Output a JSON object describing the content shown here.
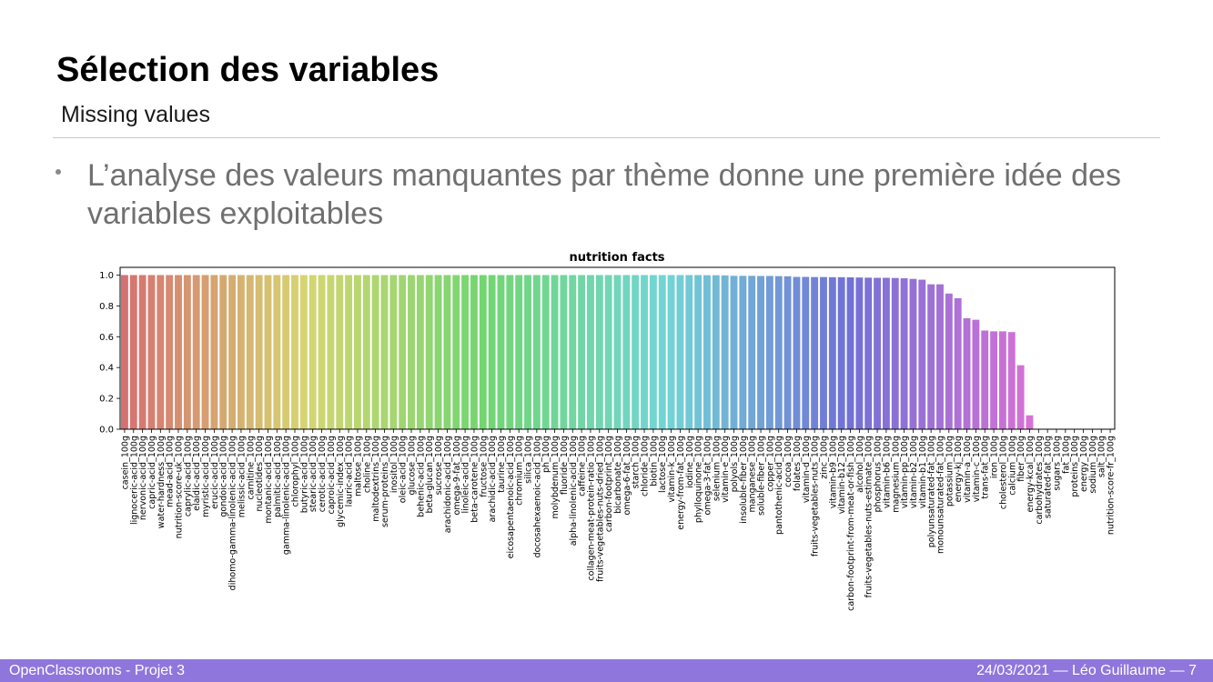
{
  "slide": {
    "title": "Sélection des variables",
    "subtitle": "Missing values",
    "bullet": "L’analyse des valeurs manquantes par thème donne une première idée des variables exploitables"
  },
  "footer": {
    "left": "OpenClassrooms - Projet 3",
    "right": "24/03/2021  — Léo Guillaume —    7"
  },
  "colors": {
    "footer_bg": "#8f76dc",
    "axis": "#000000"
  },
  "chart_data": {
    "type": "bar",
    "title": "nutrition facts",
    "xlabel": "",
    "ylabel": "",
    "ylim": [
      0,
      1.05
    ],
    "yticks": [
      "0.0",
      "0.2",
      "0.4",
      "0.6",
      "0.8",
      "1.0"
    ],
    "grid": false,
    "categories": [
      "casein_100g",
      "lignoceric-acid_100g",
      "nervonic-acid_100g",
      "capric-acid_100g",
      "water-hardness_100g",
      "mead-acid_100g",
      "nutrition-score-uk_100g",
      "caprylic-acid_100g",
      "elaidic-acid_100g",
      "myristic-acid_100g",
      "erucic-acid_100g",
      "gondoic-acid_100g",
      "dihomo-gamma-linolenic-acid_100g",
      "melissic-acid_100g",
      "carnitine_100g",
      "nucleotides_100g",
      "montanic-acid_100g",
      "palmitic-acid_100g",
      "gamma-linolenic-acid_100g",
      "chlorophyl_100g",
      "butyric-acid_100g",
      "stearic-acid_100g",
      "cerotic-acid_100g",
      "caproic-acid_100g",
      "glycemic-index_100g",
      "lauric-acid_100g",
      "maltose_100g",
      "choline_100g",
      "maltodextrins_100g",
      "serum-proteins_100g",
      "inositol_100g",
      "oleic-acid_100g",
      "glucose_100g",
      "behenic-acid_100g",
      "beta-glucan_100g",
      "sucrose_100g",
      "arachidonic-acid_100g",
      "omega-9-fat_100g",
      "linoleic-acid_100g",
      "beta-carotene_100g",
      "fructose_100g",
      "arachidic-acid_100g",
      "taurine_100g",
      "eicosapentaenoic-acid_100g",
      "chromium_100g",
      "silica_100g",
      "docosahexaenoic-acid_100g",
      "ph_100g",
      "molybdenum_100g",
      "fluoride_100g",
      "alpha-linolenic-acid_100g",
      "caffeine_100g",
      "collagen-meat-protein-ratio_100g",
      "fruits-vegetables-nuts-dried_100g",
      "carbon-footprint_100g",
      "bicarbonate_100g",
      "omega-6-fat_100g",
      "starch_100g",
      "chloride_100g",
      "biotin_100g",
      "lactose_100g",
      "vitamin-k_100g",
      "energy-from-fat_100g",
      "iodine_100g",
      "phylloquinone_100g",
      "omega-3-fat_100g",
      "selenium_100g",
      "vitamin-e_100g",
      "polyols_100g",
      "insoluble-fiber_100g",
      "manganese_100g",
      "soluble-fiber_100g",
      "copper_100g",
      "pantothenic-acid_100g",
      "cocoa_100g",
      "folates_100g",
      "vitamin-d_100g",
      "fruits-vegetables-nuts_100g",
      "zinc_100g",
      "vitamin-b9_100g",
      "vitamin-b12_100g",
      "carbon-footprint-from-meat-or-fish_100g",
      "alcohol_100g",
      "fruits-vegetables-nuts-estimate_100g",
      "phosphorus_100g",
      "vitamin-b6_100g",
      "magnesium_100g",
      "vitamin-pp_100g",
      "vitamin-b2_100g",
      "vitamin-b1_100g",
      "polyunsaturated-fat_100g",
      "monounsaturated-fat_100g",
      "potassium_100g",
      "energy-kj_100g",
      "vitamin-a_100g",
      "vitamin-c_100g",
      "trans-fat_100g",
      "iron_100g",
      "cholesterol_100g",
      "calcium_100g",
      "fiber_100g",
      "energy-kcal_100g",
      "carbohydrates_100g",
      "saturated-fat_100g",
      "sugars_100g",
      "fat_100g",
      "proteins_100g",
      "energy_100g",
      "sodium_100g",
      "salt_100g",
      "nutrition-score-fr_100g"
    ],
    "values": [
      1.0,
      1.0,
      1.0,
      1.0,
      1.0,
      1.0,
      1.0,
      1.0,
      1.0,
      1.0,
      1.0,
      1.0,
      1.0,
      1.0,
      1.0,
      1.0,
      1.0,
      1.0,
      1.0,
      1.0,
      1.0,
      1.0,
      1.0,
      1.0,
      1.0,
      1.0,
      1.0,
      1.0,
      1.0,
      1.0,
      1.0,
      1.0,
      1.0,
      1.0,
      1.0,
      1.0,
      1.0,
      1.0,
      1.0,
      1.0,
      1.0,
      1.0,
      1.0,
      1.0,
      1.0,
      1.0,
      1.0,
      1.0,
      1.0,
      1.0,
      1.0,
      1.0,
      1.0,
      1.0,
      1.0,
      1.0,
      1.0,
      1.0,
      1.0,
      1.0,
      1.0,
      1.0,
      1.0,
      1.0,
      1.0,
      0.999,
      0.999,
      0.998,
      0.995,
      0.995,
      0.995,
      0.994,
      0.994,
      0.993,
      0.992,
      0.988,
      0.988,
      0.987,
      0.987,
      0.986,
      0.986,
      0.985,
      0.984,
      0.983,
      0.982,
      0.982,
      0.981,
      0.979,
      0.975,
      0.97,
      0.94,
      0.94,
      0.88,
      0.85,
      0.72,
      0.71,
      0.64,
      0.635,
      0.635,
      0.63,
      0.415,
      0.09,
      0.0,
      0.0,
      0.0,
      0.0,
      0.0,
      0.0,
      0.0,
      0.0,
      0.0
    ]
  }
}
